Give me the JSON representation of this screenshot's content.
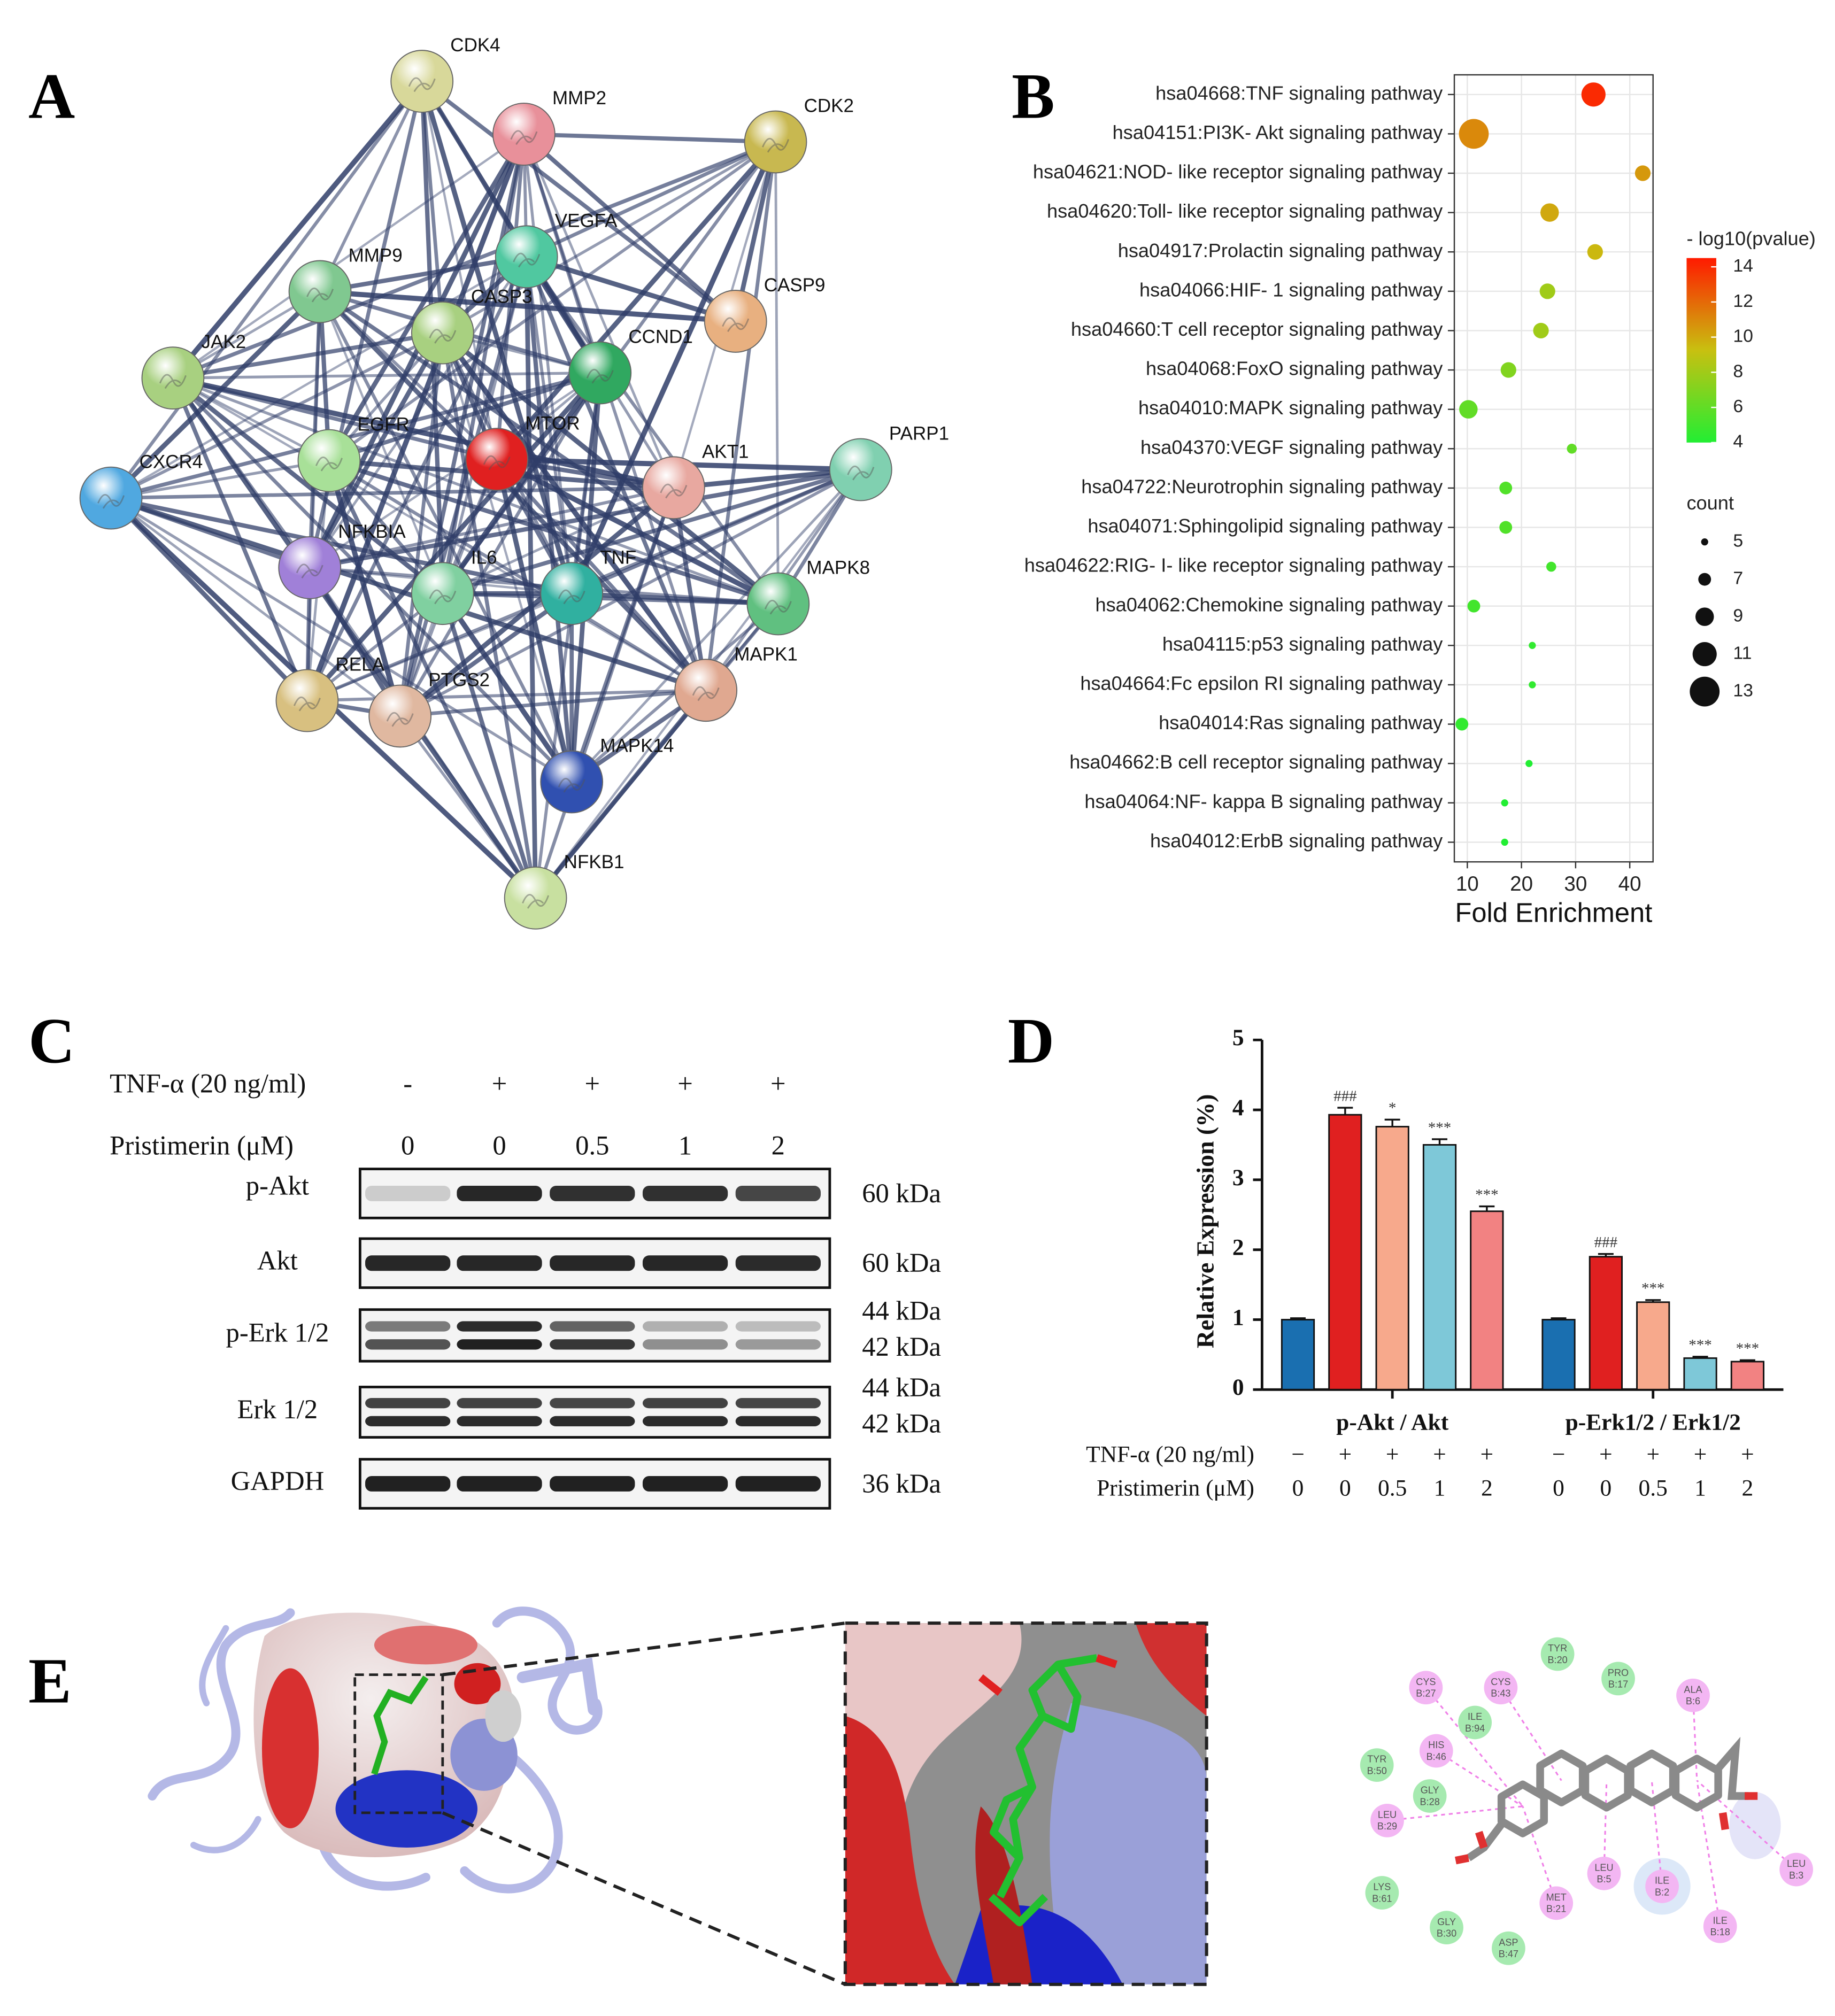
{
  "panel_labels": [
    "A",
    "B",
    "C",
    "D",
    "E"
  ],
  "network": {
    "nodes": [
      {
        "label": "CDK4",
        "color": "#d8d89a"
      },
      {
        "label": "MMP2",
        "color": "#e8909a"
      },
      {
        "label": "CDK2",
        "color": "#c8b850"
      },
      {
        "label": "VEGFA",
        "color": "#50c8a0"
      },
      {
        "label": "MMP9",
        "color": "#80c890"
      },
      {
        "label": "CASP3",
        "color": "#a8d080"
      },
      {
        "label": "CASP9",
        "color": "#e8b080"
      },
      {
        "label": "CCND1",
        "color": "#30a860"
      },
      {
        "label": "JAK2",
        "color": "#a8d080"
      },
      {
        "label": "PARP1",
        "color": "#80d0b0"
      },
      {
        "label": "EGFR",
        "color": "#a8e098"
      },
      {
        "label": "MTOR",
        "color": "#e02020"
      },
      {
        "label": "AKT1",
        "color": "#e8a8a0"
      },
      {
        "label": "CXCR4",
        "color": "#50a8e0"
      },
      {
        "label": "NFKBIA",
        "color": "#a080d8"
      },
      {
        "label": "IL6",
        "color": "#80d0a0"
      },
      {
        "label": "TNF",
        "color": "#30b0a0"
      },
      {
        "label": "MAPK8",
        "color": "#60c080"
      },
      {
        "label": "RELA",
        "color": "#d8c080"
      },
      {
        "label": "PTGS2",
        "color": "#e0b8a0"
      },
      {
        "label": "MAPK1",
        "color": "#e0a890"
      },
      {
        "label": "MAPK14",
        "color": "#3050b0"
      },
      {
        "label": "NFKB1",
        "color": "#c8e0a0"
      }
    ]
  },
  "chart_data": [
    {
      "type": "scatter",
      "categories": [
        "hsa04668:TNF signaling pathway",
        "hsa04151:PI3K- Akt signaling pathway",
        "hsa04621:NOD- like receptor signaling pathway",
        "hsa04620:Toll- like receptor signaling pathway",
        "hsa04917:Prolactin signaling pathway",
        "hsa04066:HIF- 1 signaling pathway",
        "hsa04660:T cell receptor signaling pathway",
        "hsa04068:FoxO signaling pathway",
        "hsa04010:MAPK signaling pathway",
        "hsa04370:VEGF signaling pathway",
        "hsa04722:Neurotrophin signaling pathway",
        "hsa04071:Sphingolipid signaling pathway",
        "hsa04622:RIG- I- like receptor signaling pathway",
        "hsa04062:Chemokine signaling pathway",
        "hsa04115:p53 signaling pathway",
        "hsa04664:Fc epsilon RI signaling pathway",
        "hsa04014:Ras signaling pathway",
        "hsa04662:B cell receptor signaling pathway",
        "hsa04064:NF- kappa B signaling pathway",
        "hsa04012:ErbB signaling pathway"
      ],
      "values": [
        33.3,
        11.2,
        42.4,
        25.2,
        33.6,
        24.8,
        23.6,
        17.6,
        10.2,
        29.3,
        17.1,
        17.1,
        25.5,
        11.2,
        22,
        22,
        9,
        21.4,
        16.9,
        16.9
      ],
      "neg_log10_pvalue": [
        14,
        11,
        10.5,
        10,
        9.5,
        8,
        8,
        7,
        6,
        6,
        5.5,
        5.5,
        5,
        5,
        4.5,
        4.5,
        4.5,
        4,
        4,
        4
      ],
      "counts": [
        11,
        13,
        8,
        9,
        8,
        8,
        8,
        8,
        9,
        6,
        7,
        7,
        6,
        7,
        5,
        5,
        7,
        5,
        5,
        5
      ],
      "xlabel": "Fold Enrichment",
      "xlim": [
        7.6,
        44.3
      ],
      "xticks": [
        10,
        20,
        30,
        40
      ],
      "grid": true,
      "colorbar": {
        "title": "- log10(pvalue)",
        "lim": [
          4,
          14.5
        ],
        "ticks": [
          4,
          6,
          8,
          10,
          12,
          14
        ],
        "colors": [
          "#22ee33",
          "#c8c010",
          "#ff1a00"
        ]
      },
      "size_legend": {
        "title": "count",
        "values": [
          5,
          7,
          9,
          11,
          13
        ]
      }
    },
    {
      "type": "bar",
      "categories": [
        "p-Akt / Akt",
        "p-Erk1/2 / Erk1/2"
      ],
      "ylabel": "Relative Expression (%)",
      "ylim": [
        0,
        5
      ],
      "yticks": [
        0,
        1,
        2,
        3,
        4,
        5
      ],
      "series": [
        {
          "color": "#1a6fb0",
          "values": [
            1,
            1
          ],
          "errors": [
            0.02,
            0.02
          ]
        },
        {
          "color": "#e02020",
          "values": [
            3.93,
            1.9
          ],
          "errors": [
            0.1,
            0.04
          ],
          "annotations": [
            "###",
            "###"
          ]
        },
        {
          "color": "#f7a98c",
          "values": [
            3.76,
            1.25
          ],
          "errors": [
            0.1,
            0.03
          ],
          "annotations": [
            "*",
            "***"
          ]
        },
        {
          "color": "#7ec8d8",
          "values": [
            3.5,
            0.45
          ],
          "errors": [
            0.08,
            0.02
          ],
          "annotations": [
            "***",
            "***"
          ]
        },
        {
          "color": "#f28282",
          "values": [
            2.55,
            0.4
          ],
          "errors": [
            0.07,
            0.02
          ],
          "annotations": [
            "***",
            "***"
          ]
        }
      ],
      "treatments": [
        {
          "label": "TNF-α (20 ng/ml)",
          "values": [
            "−",
            "+",
            "+",
            "+",
            "+"
          ]
        },
        {
          "label": "Pristimerin (μM)",
          "values": [
            "0",
            "0",
            "0.5",
            "1",
            "2"
          ]
        }
      ]
    }
  ],
  "blot": {
    "treatments": [
      {
        "label": "TNF-α (20 ng/ml)",
        "values": [
          "-",
          "+",
          "+",
          "+",
          "+"
        ]
      },
      {
        "label": "Pristimerin (μM)",
        "values": [
          "0",
          "0",
          "0.5",
          "1",
          "2"
        ]
      }
    ],
    "rows": [
      {
        "label": "p-Akt",
        "sizes": [
          "60 kDa"
        ]
      },
      {
        "label": "Akt",
        "sizes": [
          "60 kDa"
        ]
      },
      {
        "label": "p-Erk 1/2",
        "sizes": [
          "44 kDa",
          "42 kDa"
        ]
      },
      {
        "label": "Erk 1/2",
        "sizes": [
          "44 kDa",
          "42 kDa"
        ]
      },
      {
        "label": "GAPDH",
        "sizes": [
          "36 kDa"
        ]
      }
    ]
  },
  "docking": {
    "residues": [
      {
        "name": "TYR",
        "position": "B:20",
        "color": "#a6eab0"
      },
      {
        "name": "PRO",
        "position": "B:17",
        "color": "#a6eab0"
      },
      {
        "name": "CYS",
        "position": "B:27",
        "color": "#f3b6f3"
      },
      {
        "name": "CYS",
        "position": "B:43",
        "color": "#f3b6f3"
      },
      {
        "name": "ALA",
        "position": "B:6",
        "color": "#f3b6f3"
      },
      {
        "name": "ILE",
        "position": "B:94",
        "color": "#a6eab0"
      },
      {
        "name": "HIS",
        "position": "B:46",
        "color": "#f3b6f3"
      },
      {
        "name": "TYR",
        "position": "B:50",
        "color": "#a6eab0"
      },
      {
        "name": "GLY",
        "position": "B:28",
        "color": "#a6eab0"
      },
      {
        "name": "LEU",
        "position": "B:29",
        "color": "#f3b6f3"
      },
      {
        "name": "LEU",
        "position": "B:5",
        "color": "#f3b6f3"
      },
      {
        "name": "ILE",
        "position": "B:2",
        "color": "#f3b6f3"
      },
      {
        "name": "LEU",
        "position": "B:3",
        "color": "#f3b6f3"
      },
      {
        "name": "MET",
        "position": "B:21",
        "color": "#f3b6f3"
      },
      {
        "name": "LYS",
        "position": "B:61",
        "color": "#a6eab0"
      },
      {
        "name": "ILE",
        "position": "B:18",
        "color": "#f3b6f3"
      },
      {
        "name": "GLY",
        "position": "B:30",
        "color": "#a6eab0"
      },
      {
        "name": "ASP",
        "position": "B:47",
        "color": "#a6eab0"
      }
    ]
  }
}
